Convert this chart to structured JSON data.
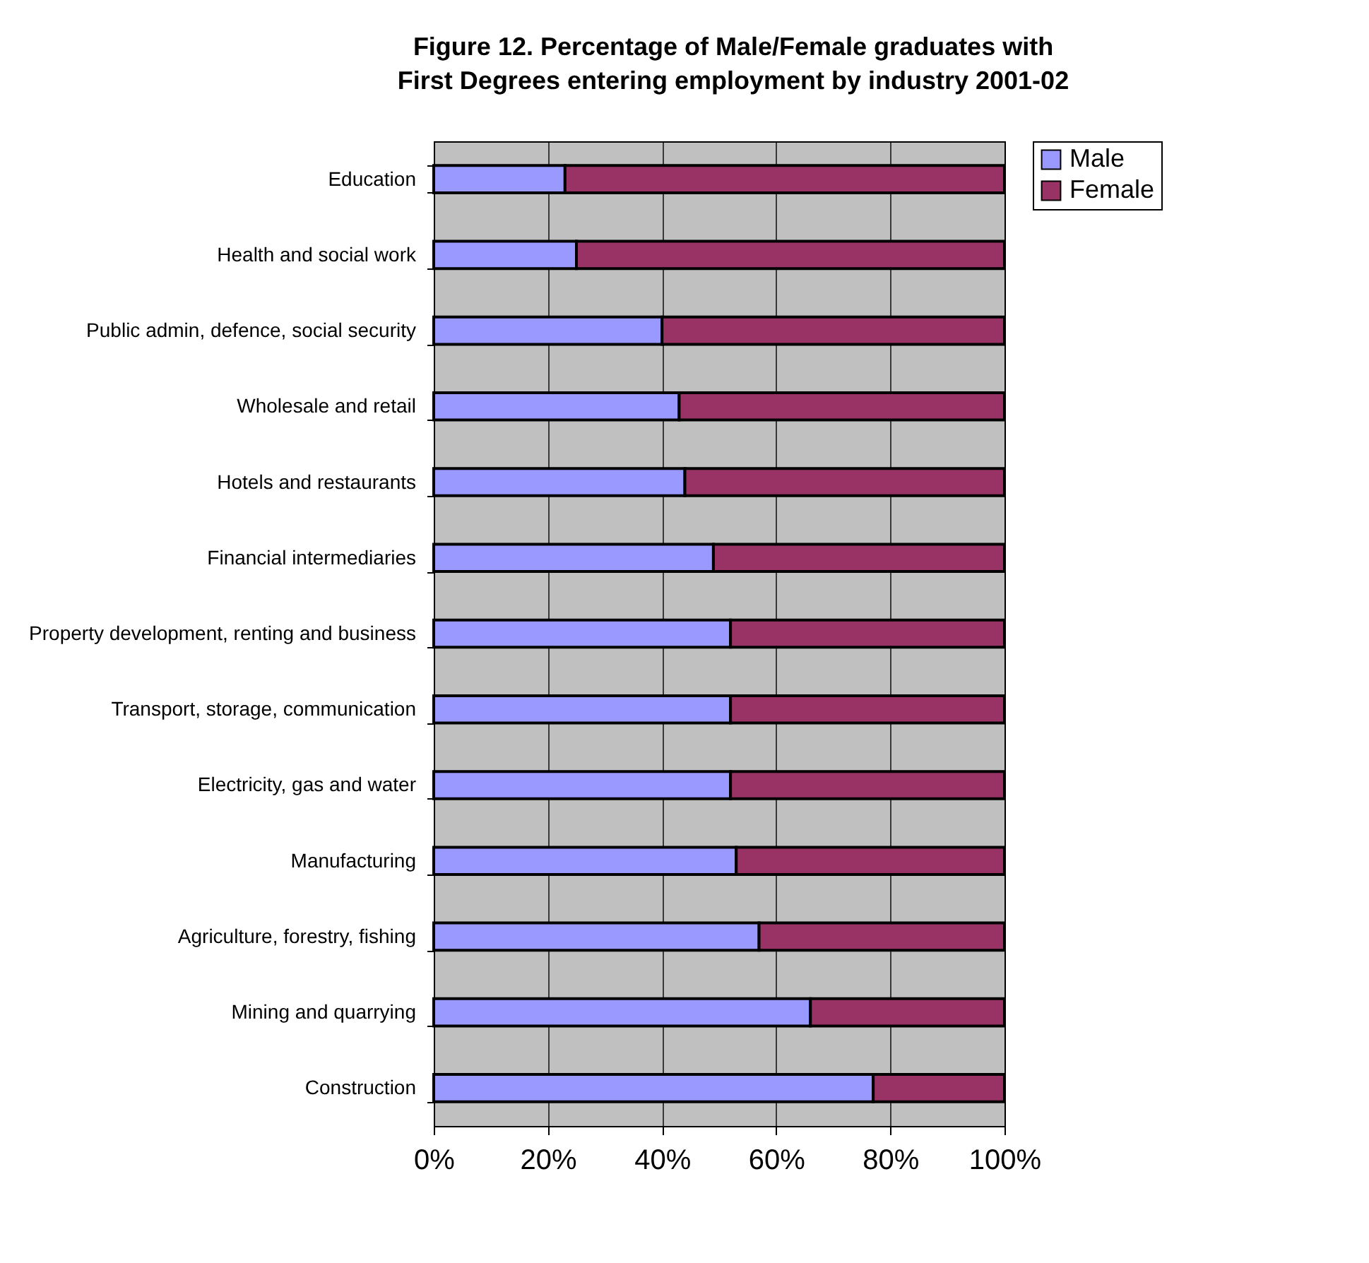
{
  "chart_data": {
    "type": "bar",
    "orientation": "horizontal",
    "stacked": true,
    "title": "Figure 12. Percentage of Male/Female graduates with First Degrees entering employment by industry 2001-02",
    "categories": [
      "Education",
      "Health and social work",
      "Public admin, defence, social security",
      "Wholesale and retail",
      "Hotels and restaurants",
      "Financial intermediaries",
      "Property development, renting and business",
      "Transport, storage, communication",
      "Electricity, gas and water",
      "Manufacturing",
      "Agriculture, forestry, fishing",
      "Mining and quarrying",
      "Construction"
    ],
    "series": [
      {
        "name": "Male",
        "color": "#9999ff",
        "values": [
          23,
          25,
          40,
          43,
          44,
          49,
          52,
          52,
          52,
          53,
          57,
          66,
          77
        ]
      },
      {
        "name": "Female",
        "color": "#993366",
        "values": [
          77,
          75,
          60,
          57,
          56,
          51,
          48,
          48,
          48,
          47,
          43,
          34,
          23
        ]
      }
    ],
    "xlim": [
      0,
      100
    ],
    "xticks": [
      {
        "value": 0,
        "label": "0%"
      },
      {
        "value": 20,
        "label": "20%"
      },
      {
        "value": 40,
        "label": "40%"
      },
      {
        "value": 60,
        "label": "60%"
      },
      {
        "value": 80,
        "label": "80%"
      },
      {
        "value": 100,
        "label": "100%"
      }
    ],
    "grid": "x",
    "legend": "right"
  }
}
